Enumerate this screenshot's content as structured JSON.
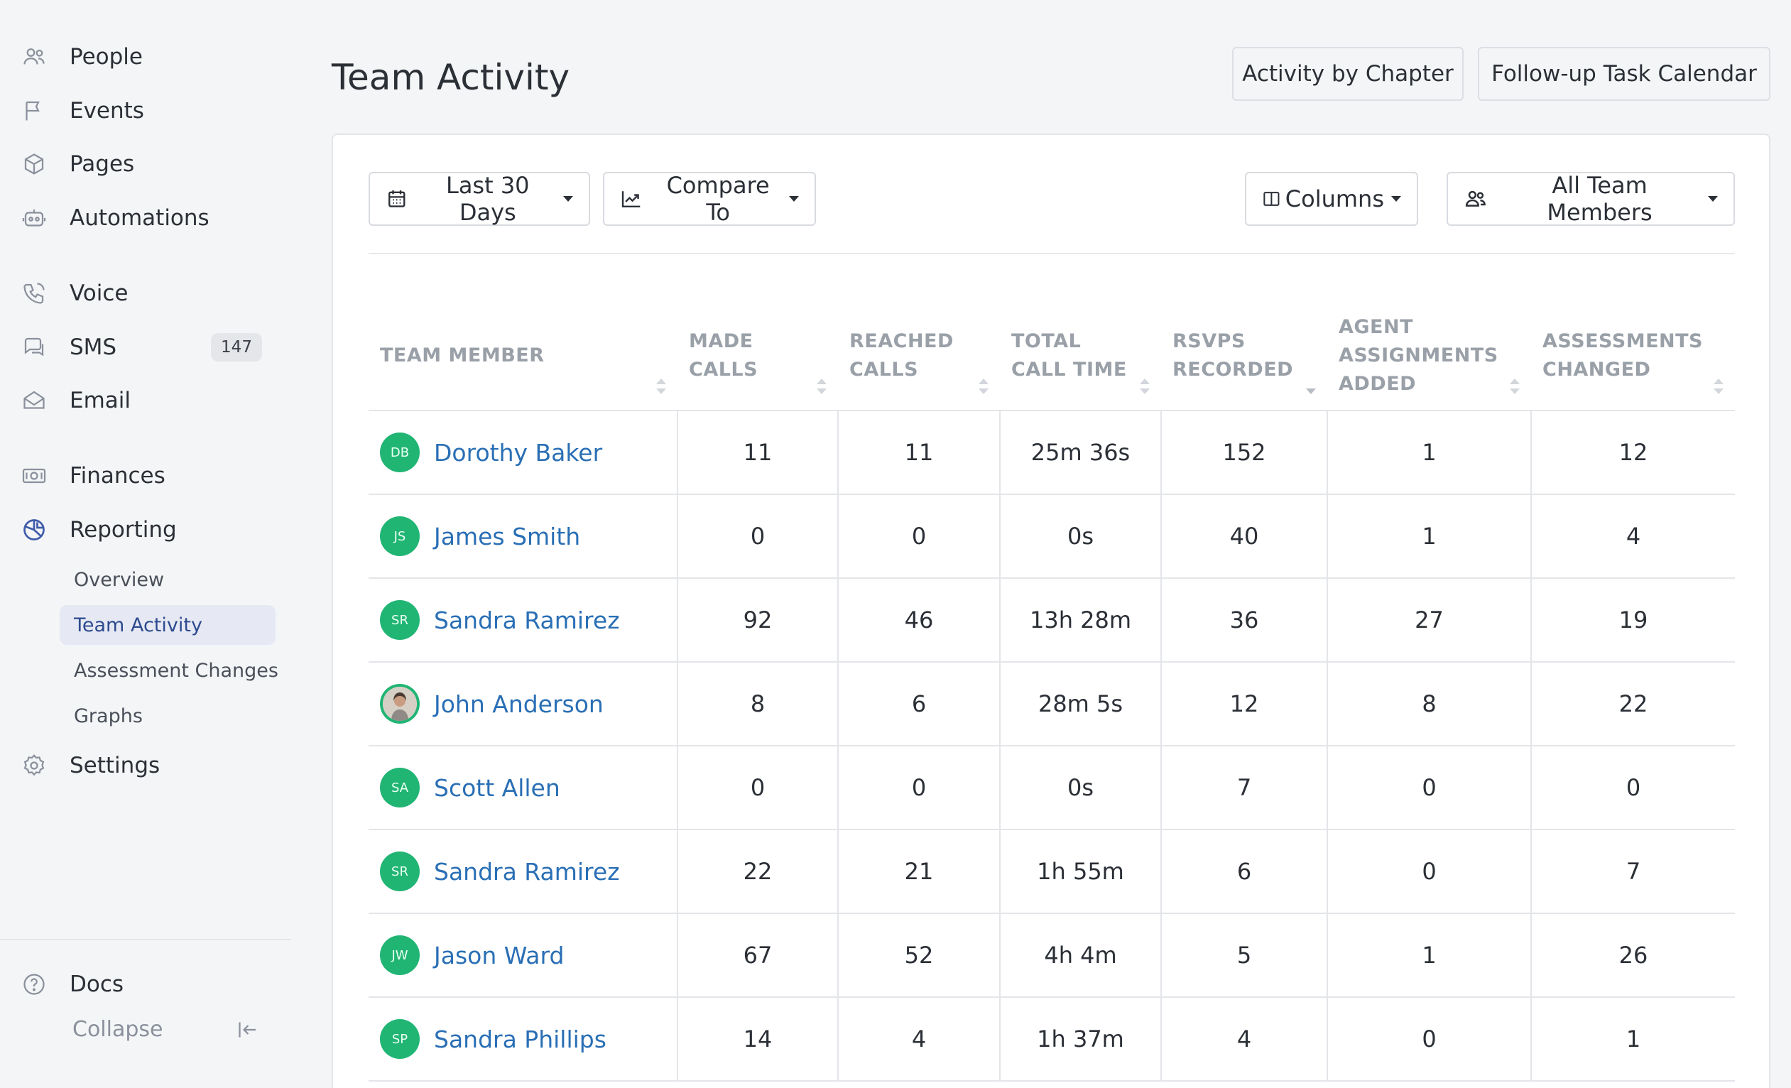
{
  "sidebar": {
    "items": [
      {
        "label": "People",
        "icon": "people-icon"
      },
      {
        "label": "Events",
        "icon": "flag-icon"
      },
      {
        "label": "Pages",
        "icon": "cube-icon"
      },
      {
        "label": "Automations",
        "icon": "robot-icon"
      },
      {
        "label": "Voice",
        "icon": "phone-icon"
      },
      {
        "label": "SMS",
        "icon": "chat-icon",
        "badge": "147"
      },
      {
        "label": "Email",
        "icon": "envelope-icon"
      },
      {
        "label": "Finances",
        "icon": "money-icon"
      },
      {
        "label": "Reporting",
        "icon": "chart-pie-icon"
      },
      {
        "label": "Settings",
        "icon": "gear-icon"
      }
    ],
    "reporting_sub": [
      "Overview",
      "Team Activity",
      "Assessment Changes",
      "Graphs"
    ],
    "docs_label": "Docs",
    "collapse_label": "Collapse"
  },
  "header": {
    "title": "Team Activity",
    "buttons": [
      "Activity by Chapter",
      "Follow-up Task Calendar"
    ]
  },
  "toolbar": {
    "date_range": "Last 30 Days",
    "compare": "Compare To",
    "columns": "Columns",
    "members_filter": "All Team Members"
  },
  "table": {
    "columns": [
      [
        "TEAM MEMBER"
      ],
      [
        "MADE",
        "CALLS"
      ],
      [
        "REACHED",
        "CALLS"
      ],
      [
        "TOTAL",
        "CALL TIME"
      ],
      [
        "RSVPS",
        "RECORDED"
      ],
      [
        "AGENT",
        "ASSIGNMENTS",
        "ADDED"
      ],
      [
        "ASSESSMENTS",
        "CHANGED"
      ]
    ],
    "rows": [
      {
        "initials": "DB",
        "name": "Dorothy Baker",
        "cells": [
          "11",
          "11",
          "25m 36s",
          "152",
          "1",
          "12"
        ]
      },
      {
        "initials": "JS",
        "name": "James Smith",
        "cells": [
          "0",
          "0",
          "0s",
          "40",
          "1",
          "4"
        ]
      },
      {
        "initials": "SR",
        "name": "Sandra Ramirez",
        "cells": [
          "92",
          "46",
          "13h 28m",
          "36",
          "27",
          "19"
        ]
      },
      {
        "initials": "",
        "name": "John Anderson",
        "cells": [
          "8",
          "6",
          "28m 5s",
          "12",
          "8",
          "22"
        ],
        "photo": true
      },
      {
        "initials": "SA",
        "name": "Scott Allen",
        "cells": [
          "0",
          "0",
          "0s",
          "7",
          "0",
          "0"
        ]
      },
      {
        "initials": "SR",
        "name": "Sandra Ramirez",
        "cells": [
          "22",
          "21",
          "1h 55m",
          "6",
          "0",
          "7"
        ]
      },
      {
        "initials": "JW",
        "name": "Jason Ward",
        "cells": [
          "67",
          "52",
          "4h 4m",
          "5",
          "1",
          "26"
        ]
      },
      {
        "initials": "SP",
        "name": "Sandra Phillips",
        "cells": [
          "14",
          "4",
          "1h 37m",
          "4",
          "0",
          "1"
        ]
      }
    ]
  },
  "colors": {
    "accent_link": "#2a6fb5",
    "avatar_green": "#21b574",
    "active_nav": "#3f5ba9"
  }
}
